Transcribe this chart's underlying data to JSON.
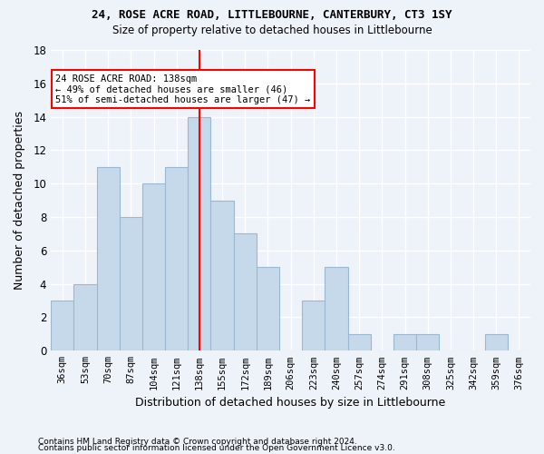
{
  "title1": "24, ROSE ACRE ROAD, LITTLEBOURNE, CANTERBURY, CT3 1SY",
  "title2": "Size of property relative to detached houses in Littlebourne",
  "xlabel": "Distribution of detached houses by size in Littlebourne",
  "ylabel": "Number of detached properties",
  "footnote1": "Contains HM Land Registry data © Crown copyright and database right 2024.",
  "footnote2": "Contains public sector information licensed under the Open Government Licence v3.0.",
  "bin_labels": [
    "36sqm",
    "53sqm",
    "70sqm",
    "87sqm",
    "104sqm",
    "121sqm",
    "138sqm",
    "155sqm",
    "172sqm",
    "189sqm",
    "206sqm",
    "223sqm",
    "240sqm",
    "257sqm",
    "274sqm",
    "291sqm",
    "308sqm",
    "325sqm",
    "342sqm",
    "359sqm",
    "376sqm"
  ],
  "bar_values": [
    3,
    4,
    11,
    8,
    10,
    11,
    14,
    9,
    7,
    5,
    0,
    3,
    5,
    1,
    0,
    1,
    1,
    0,
    0,
    1,
    0
  ],
  "bar_color": "#c6d9ea",
  "bar_edgecolor": "#9ab8d0",
  "marker_bin_index": 6,
  "marker_color": "red",
  "annotation_text": "24 ROSE ACRE ROAD: 138sqm\n← 49% of detached houses are smaller (46)\n51% of semi-detached houses are larger (47) →",
  "annotation_box_color": "white",
  "annotation_box_edgecolor": "red",
  "ylim": [
    0,
    18
  ],
  "yticks": [
    0,
    2,
    4,
    6,
    8,
    10,
    12,
    14,
    16,
    18
  ],
  "background_color": "#eef2f9",
  "grid_color": "white",
  "title1_fontsize": 9,
  "title2_fontsize": 8.5,
  "ylabel_fontsize": 9,
  "xlabel_fontsize": 9,
  "tick_fontsize": 7.5,
  "footnote_fontsize": 6.5
}
